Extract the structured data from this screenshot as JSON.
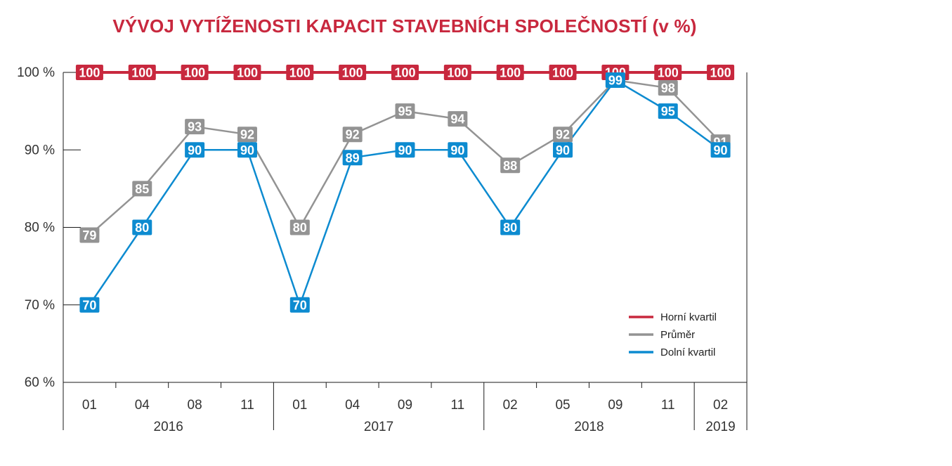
{
  "chart_data": {
    "type": "line",
    "title": "VÝVOJ VYTÍŽENOSTI KAPACIT STAVEBNÍCH SPOLEČNOSTÍ (v %)",
    "categories": [
      "01",
      "04",
      "08",
      "11",
      "01",
      "04",
      "09",
      "11",
      "02",
      "05",
      "09",
      "11",
      "02"
    ],
    "year_groups": [
      {
        "label": "2016",
        "count": 4
      },
      {
        "label": "2017",
        "count": 4
      },
      {
        "label": "2018",
        "count": 4
      },
      {
        "label": "2019",
        "count": 1
      }
    ],
    "y_ticks": [
      "60 %",
      "70 %",
      "80 %",
      "90 %",
      "100 %"
    ],
    "ylim": [
      60,
      100
    ],
    "grid": false,
    "legend_position": "bottom-right",
    "series": [
      {
        "name": "Horní kvartil",
        "color": "#c8283e",
        "values": [
          100,
          100,
          100,
          100,
          100,
          100,
          100,
          100,
          100,
          100,
          100,
          100,
          100
        ]
      },
      {
        "name": "Průměr",
        "color": "#939393",
        "values": [
          79,
          85,
          93,
          92,
          80,
          92,
          95,
          94,
          88,
          92,
          99,
          98,
          91
        ]
      },
      {
        "name": "Dolní kvartil",
        "color": "#0d8bd0",
        "values": [
          70,
          80,
          90,
          90,
          70,
          89,
          90,
          90,
          80,
          90,
          99,
          95,
          90
        ]
      }
    ],
    "title_color": "#c8283e"
  }
}
